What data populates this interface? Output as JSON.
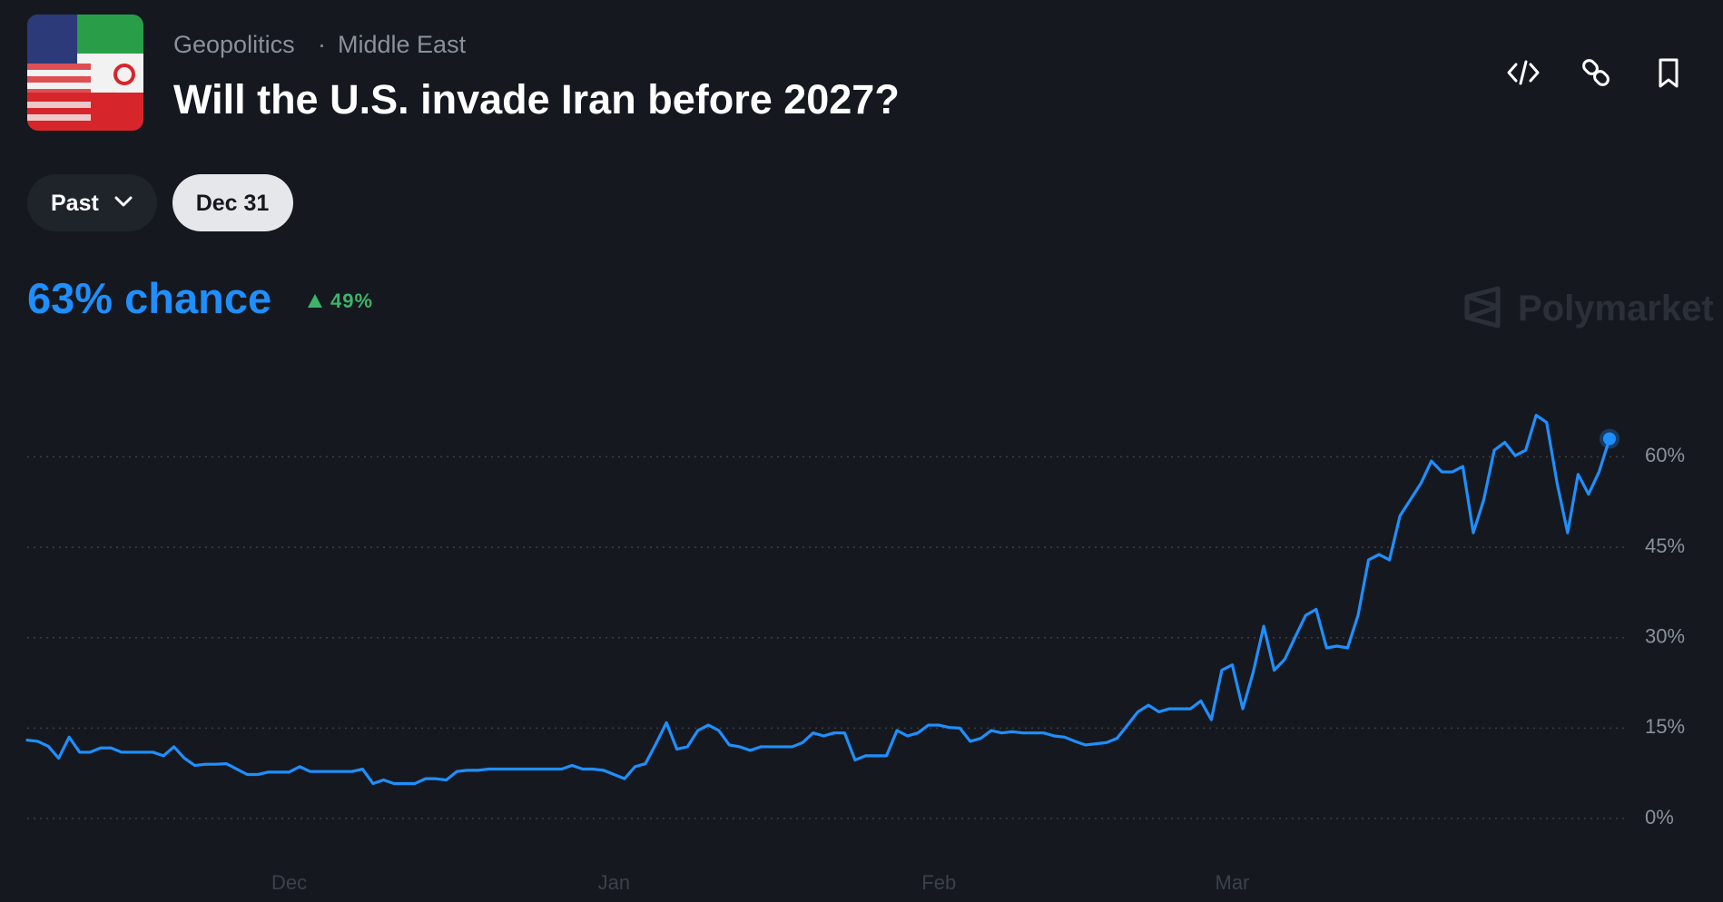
{
  "header": {
    "category": "Geopolitics",
    "separator": "·",
    "subcategory": "Middle East",
    "title": "Will the U.S. invade Iran before 2027?"
  },
  "controls": {
    "range": "Past",
    "date": "Dec 31"
  },
  "summary": {
    "chance": "63% chance",
    "change": "49%"
  },
  "watermark": "Polymarket",
  "chart_data": {
    "type": "line",
    "x": [
      0,
      1,
      2,
      3,
      4,
      5,
      6,
      7,
      8,
      9,
      10,
      11,
      12,
      13,
      14,
      15,
      16,
      17,
      18,
      19,
      20,
      21,
      22,
      23,
      24,
      25,
      26,
      27,
      28,
      29,
      30,
      31,
      32,
      33,
      34,
      35,
      36,
      37,
      38,
      39,
      40,
      41,
      42,
      43,
      44,
      45,
      46,
      47,
      48,
      49,
      50,
      51,
      52,
      53,
      54,
      55,
      56,
      57,
      58,
      59,
      60,
      61,
      62,
      63,
      64,
      65,
      66,
      67,
      68,
      69,
      70,
      71,
      72,
      73,
      74,
      75,
      76,
      77,
      78,
      79,
      80,
      81,
      82,
      83,
      84,
      85,
      86,
      87,
      88,
      89,
      90,
      91,
      92,
      93,
      94,
      95,
      96,
      97,
      98,
      99,
      100,
      101,
      102,
      103,
      104,
      105,
      106,
      107,
      108,
      109,
      110,
      111,
      112,
      113,
      114,
      115,
      116,
      117,
      118,
      119,
      120,
      121,
      122,
      123,
      124,
      125,
      126,
      127,
      128,
      129,
      130,
      131,
      132,
      133,
      134,
      135,
      136,
      137,
      138,
      139,
      140,
      141,
      142,
      143,
      144,
      145,
      146,
      147,
      148,
      149,
      150,
      151
    ],
    "series": [
      {
        "color": "#1f8fff",
        "values": [
          13,
          12.8,
          12,
          10,
          13.5,
          11,
          11,
          11.7,
          11.7,
          11,
          11,
          11,
          11,
          10.4,
          11.9,
          10,
          8.8,
          9,
          9,
          9.1,
          8.2,
          7.3,
          7.3,
          7.7,
          7.7,
          7.7,
          8.6,
          7.8,
          7.8,
          7.8,
          7.8,
          7.8,
          8.2,
          5.8,
          6.4,
          5.8,
          5.8,
          5.8,
          6.6,
          6.6,
          6.4,
          7.8,
          8,
          8,
          8.2,
          8.2,
          8.2,
          8.2,
          8.2,
          8.2,
          8.2,
          8.2,
          8.8,
          8.2,
          8.2,
          8,
          7.3,
          6.6,
          8.6,
          9.1,
          12.4,
          15.9,
          11.5,
          11.9,
          14.6,
          15.5,
          14.6,
          12.2,
          11.9,
          11.3,
          11.9,
          11.9,
          11.9,
          11.9,
          12.6,
          14.2,
          13.7,
          14.2,
          14.2,
          9.7,
          10.4,
          10.4,
          10.4,
          14.6,
          13.7,
          14.2,
          15.5,
          15.5,
          15.1,
          15,
          12.8,
          13.3,
          14.6,
          14.2,
          14.4,
          14.2,
          14.2,
          14.2,
          13.7,
          13.5,
          12.8,
          12.2,
          12.4,
          12.6,
          13.3,
          15.5,
          17.7,
          18.8,
          17.7,
          18.2,
          18.2,
          18.2,
          19.5,
          16.4,
          24.6,
          25.5,
          18.2,
          24.3,
          31.9,
          24.6,
          26.4,
          30.1,
          33.7,
          34.7,
          28.3,
          28.6,
          28.3,
          33.7,
          42.9,
          43.8,
          42.9,
          50.2,
          52.9,
          55.6,
          59.3,
          57.5,
          57.5,
          58.4,
          47.4,
          52.9,
          61.1,
          62.4,
          60.2,
          61.1,
          66.9,
          65.7,
          55.6,
          47.4,
          57.1,
          53.8,
          57.5,
          63
        ]
      }
    ],
    "xlim": [
      0,
      151
    ],
    "xticks": [
      {
        "value": 25,
        "label": "Dec"
      },
      {
        "value": 56,
        "label": "Jan"
      },
      {
        "value": 87,
        "label": "Feb"
      },
      {
        "value": 115,
        "label": "Mar"
      }
    ],
    "ylim": [
      0,
      70
    ],
    "yticks": [
      {
        "value": 0,
        "label": "0%"
      },
      {
        "value": 15,
        "label": "15%"
      },
      {
        "value": 30,
        "label": "30%"
      },
      {
        "value": 45,
        "label": "45%"
      },
      {
        "value": 60,
        "label": "60%"
      }
    ],
    "grid": true
  }
}
